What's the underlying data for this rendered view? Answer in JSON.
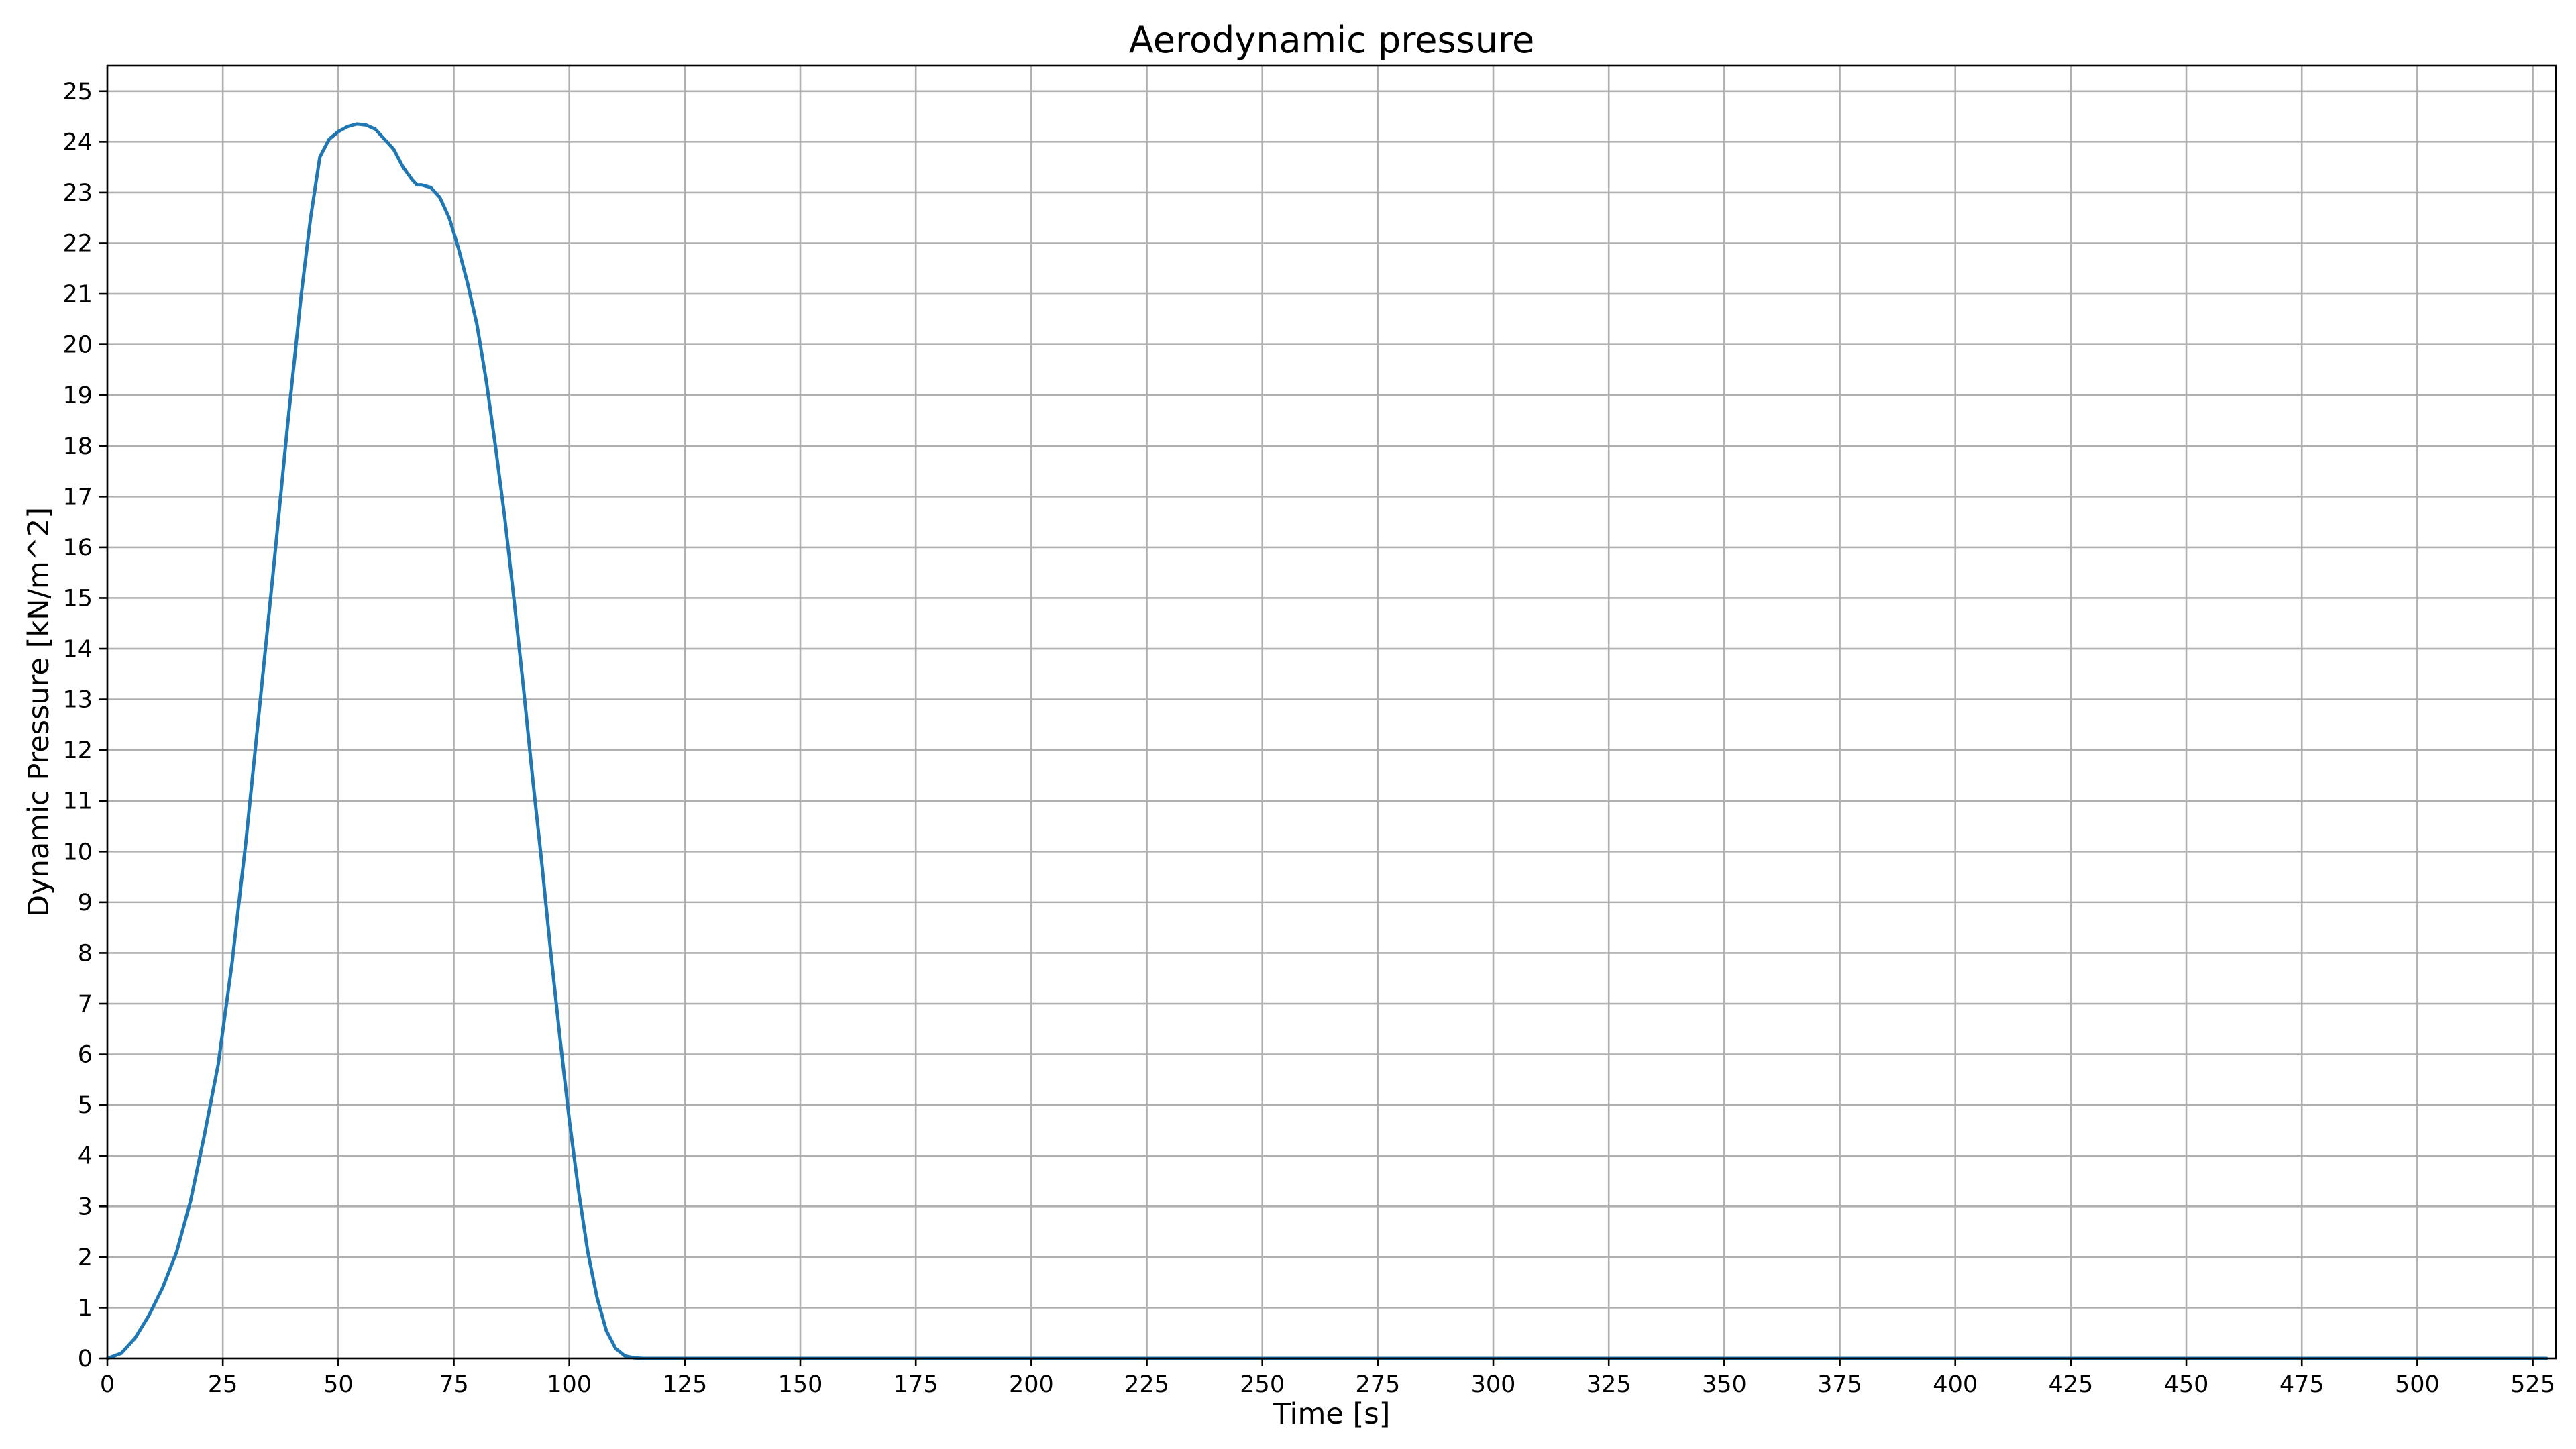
{
  "chart_data": {
    "type": "line",
    "title": "Aerodynamic pressure",
    "xlabel": "Time [s]",
    "ylabel": "Dynamic Pressure [kN/m^2]",
    "xlim": [
      0,
      530
    ],
    "ylim": [
      0,
      25.5
    ],
    "xticks": [
      0,
      25,
      50,
      75,
      100,
      125,
      150,
      175,
      200,
      225,
      250,
      275,
      300,
      325,
      350,
      375,
      400,
      425,
      450,
      475,
      500,
      525
    ],
    "yticks": [
      0,
      1,
      2,
      3,
      4,
      5,
      6,
      7,
      8,
      9,
      10,
      11,
      12,
      13,
      14,
      15,
      16,
      17,
      18,
      19,
      20,
      21,
      22,
      23,
      24,
      25
    ],
    "grid": true,
    "legend": "none",
    "series": [
      {
        "color": "#1f77b4",
        "x": [
          0,
          3,
          6,
          9,
          12,
          15,
          18,
          21,
          24,
          27,
          30,
          33,
          36,
          39,
          42,
          44,
          46,
          48,
          50,
          52,
          54,
          56,
          58,
          60,
          62,
          64,
          66,
          67,
          68,
          70,
          72,
          74,
          76,
          78,
          80,
          82,
          84,
          86,
          88,
          90,
          92,
          94,
          96,
          98,
          100,
          102,
          104,
          106,
          108,
          110,
          112,
          114,
          116,
          118,
          120,
          125,
          150,
          200,
          250,
          300,
          350,
          400,
          450,
          500,
          528
        ],
        "y": [
          0,
          0.1,
          0.4,
          0.85,
          1.4,
          2.1,
          3.1,
          4.4,
          5.8,
          7.8,
          10.2,
          12.9,
          15.6,
          18.4,
          21.0,
          22.5,
          23.7,
          24.05,
          24.2,
          24.3,
          24.35,
          24.33,
          24.25,
          24.05,
          23.85,
          23.5,
          23.25,
          23.15,
          23.15,
          23.1,
          22.9,
          22.5,
          21.9,
          21.2,
          20.4,
          19.3,
          18.0,
          16.6,
          15.0,
          13.3,
          11.5,
          9.8,
          8.0,
          6.3,
          4.7,
          3.3,
          2.1,
          1.2,
          0.55,
          0.2,
          0.05,
          0.01,
          0,
          0,
          0,
          0,
          0,
          0,
          0,
          0,
          0,
          0,
          0,
          0,
          0
        ]
      }
    ]
  }
}
